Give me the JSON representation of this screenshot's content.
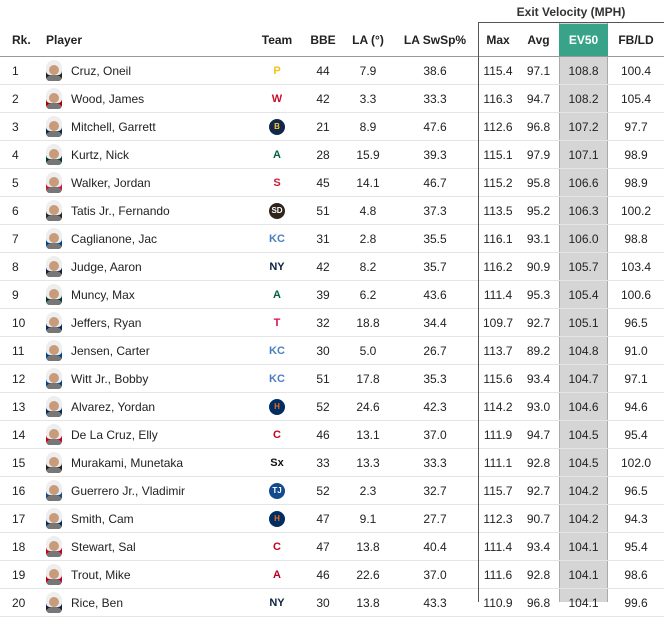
{
  "group_header": "Exit Velocity (MPH)",
  "columns": {
    "rank": "Rk.",
    "player": "Player",
    "team": "Team",
    "bbe": "BBE",
    "la": "LA (°)",
    "la_swsp": "LA SwSp%",
    "max": "Max",
    "avg": "Avg",
    "ev50": "EV50",
    "fbld": "FB/LD"
  },
  "accent_colors": {
    "ev50_header": "#39a38a",
    "ev50_column": "#d5d5d5"
  },
  "rows": [
    {
      "rank": "1",
      "player": "Cruz, Oneil",
      "team_icon": "pirates-logo-icon",
      "team_glyph": "P",
      "team_color": "#f2c21b",
      "team_bg": "transparent",
      "bbe": "44",
      "la": "7.9",
      "la_swsp": "38.6",
      "max": "115.4",
      "avg": "97.1",
      "ev50": "108.8",
      "fbld": "100.4"
    },
    {
      "rank": "2",
      "player": "Wood, James",
      "team_icon": "nationals-logo-icon",
      "team_glyph": "W",
      "team_color": "#c8102e",
      "team_bg": "transparent",
      "bbe": "42",
      "la": "3.3",
      "la_swsp": "33.3",
      "max": "116.3",
      "avg": "94.7",
      "ev50": "108.2",
      "fbld": "105.4"
    },
    {
      "rank": "3",
      "player": "Mitchell, Garrett",
      "team_icon": "brewers-logo-icon",
      "team_glyph": "B",
      "team_color": "#ffc52f",
      "team_bg": "#12284b",
      "bbe": "21",
      "la": "8.9",
      "la_swsp": "47.6",
      "max": "112.6",
      "avg": "96.8",
      "ev50": "107.2",
      "fbld": "97.7"
    },
    {
      "rank": "4",
      "player": "Kurtz, Nick",
      "team_icon": "athletics-logo-icon",
      "team_glyph": "A",
      "team_color": "#006341",
      "team_bg": "transparent",
      "bbe": "28",
      "la": "15.9",
      "la_swsp": "39.3",
      "max": "115.1",
      "avg": "97.9",
      "ev50": "107.1",
      "fbld": "98.9"
    },
    {
      "rank": "5",
      "player": "Walker, Jordan",
      "team_icon": "cardinals-logo-icon",
      "team_glyph": "S",
      "team_color": "#c41e3a",
      "team_bg": "transparent",
      "bbe": "45",
      "la": "14.1",
      "la_swsp": "46.7",
      "max": "115.2",
      "avg": "95.8",
      "ev50": "106.6",
      "fbld": "98.9"
    },
    {
      "rank": "6",
      "player": "Tatis Jr., Fernando",
      "team_icon": "padres-logo-icon",
      "team_glyph": "SD",
      "team_color": "#ffffff",
      "team_bg": "#2f241d",
      "bbe": "51",
      "la": "4.8",
      "la_swsp": "37.3",
      "max": "113.5",
      "avg": "95.2",
      "ev50": "106.3",
      "fbld": "100.2"
    },
    {
      "rank": "7",
      "player": "Caglianone, Jac",
      "team_icon": "royals-logo-icon",
      "team_glyph": "KC",
      "team_color": "#4a7fc1",
      "team_bg": "transparent",
      "bbe": "31",
      "la": "2.8",
      "la_swsp": "35.5",
      "max": "116.1",
      "avg": "93.1",
      "ev50": "106.0",
      "fbld": "98.8"
    },
    {
      "rank": "8",
      "player": "Judge, Aaron",
      "team_icon": "yankees-logo-icon",
      "team_glyph": "NY",
      "team_color": "#0c2340",
      "team_bg": "transparent",
      "bbe": "42",
      "la": "8.2",
      "la_swsp": "35.7",
      "max": "116.2",
      "avg": "90.9",
      "ev50": "105.7",
      "fbld": "103.4"
    },
    {
      "rank": "9",
      "player": "Muncy, Max",
      "team_icon": "athletics-logo-icon",
      "team_glyph": "A",
      "team_color": "#006341",
      "team_bg": "transparent",
      "bbe": "39",
      "la": "6.2",
      "la_swsp": "43.6",
      "max": "111.4",
      "avg": "95.3",
      "ev50": "105.4",
      "fbld": "100.6"
    },
    {
      "rank": "10",
      "player": "Jeffers, Ryan",
      "team_icon": "twins-logo-icon",
      "team_glyph": "T",
      "team_color": "#d31145",
      "team_bg": "transparent",
      "bbe": "32",
      "la": "18.8",
      "la_swsp": "34.4",
      "max": "109.7",
      "avg": "92.7",
      "ev50": "105.1",
      "fbld": "96.5"
    },
    {
      "rank": "11",
      "player": "Jensen, Carter",
      "team_icon": "royals-logo-icon",
      "team_glyph": "KC",
      "team_color": "#4a7fc1",
      "team_bg": "transparent",
      "bbe": "30",
      "la": "5.0",
      "la_swsp": "26.7",
      "max": "113.7",
      "avg": "89.2",
      "ev50": "104.8",
      "fbld": "91.0"
    },
    {
      "rank": "12",
      "player": "Witt Jr., Bobby",
      "team_icon": "royals-logo-icon",
      "team_glyph": "KC",
      "team_color": "#4a7fc1",
      "team_bg": "transparent",
      "bbe": "51",
      "la": "17.8",
      "la_swsp": "35.3",
      "max": "115.6",
      "avg": "93.4",
      "ev50": "104.7",
      "fbld": "97.1"
    },
    {
      "rank": "13",
      "player": "Alvarez, Yordan",
      "team_icon": "astros-logo-icon",
      "team_glyph": "H",
      "team_color": "#eb6e1f",
      "team_bg": "#002d62",
      "bbe": "52",
      "la": "24.6",
      "la_swsp": "42.3",
      "max": "114.2",
      "avg": "93.0",
      "ev50": "104.6",
      "fbld": "94.6"
    },
    {
      "rank": "14",
      "player": "De La Cruz, Elly",
      "team_icon": "reds-logo-icon",
      "team_glyph": "C",
      "team_color": "#c6011f",
      "team_bg": "transparent",
      "bbe": "46",
      "la": "13.1",
      "la_swsp": "37.0",
      "max": "111.9",
      "avg": "94.7",
      "ev50": "104.5",
      "fbld": "95.4"
    },
    {
      "rank": "15",
      "player": "Murakami, Munetaka",
      "team_icon": "white-sox-logo-icon",
      "team_glyph": "Sx",
      "team_color": "#111111",
      "team_bg": "transparent",
      "bbe": "33",
      "la": "13.3",
      "la_swsp": "33.3",
      "max": "111.1",
      "avg": "92.8",
      "ev50": "104.5",
      "fbld": "102.0"
    },
    {
      "rank": "16",
      "player": "Guerrero Jr., Vladimir",
      "team_icon": "blue-jays-logo-icon",
      "team_glyph": "TJ",
      "team_color": "#ffffff",
      "team_bg": "#134a8e",
      "bbe": "52",
      "la": "2.3",
      "la_swsp": "32.7",
      "max": "115.7",
      "avg": "92.7",
      "ev50": "104.2",
      "fbld": "96.5"
    },
    {
      "rank": "17",
      "player": "Smith, Cam",
      "team_icon": "astros-logo-icon",
      "team_glyph": "H",
      "team_color": "#eb6e1f",
      "team_bg": "#002d62",
      "bbe": "47",
      "la": "9.1",
      "la_swsp": "27.7",
      "max": "112.3",
      "avg": "90.7",
      "ev50": "104.2",
      "fbld": "94.3"
    },
    {
      "rank": "18",
      "player": "Stewart, Sal",
      "team_icon": "reds-logo-icon",
      "team_glyph": "C",
      "team_color": "#c6011f",
      "team_bg": "transparent",
      "bbe": "47",
      "la": "13.8",
      "la_swsp": "40.4",
      "max": "111.4",
      "avg": "93.4",
      "ev50": "104.1",
      "fbld": "95.4"
    },
    {
      "rank": "19",
      "player": "Trout, Mike",
      "team_icon": "angels-logo-icon",
      "team_glyph": "A",
      "team_color": "#ba0021",
      "team_bg": "transparent",
      "bbe": "46",
      "la": "22.6",
      "la_swsp": "37.0",
      "max": "111.6",
      "avg": "92.8",
      "ev50": "104.1",
      "fbld": "98.6"
    },
    {
      "rank": "20",
      "player": "Rice, Ben",
      "team_icon": "yankees-logo-icon",
      "team_glyph": "NY",
      "team_color": "#0c2340",
      "team_bg": "transparent",
      "bbe": "30",
      "la": "13.8",
      "la_swsp": "43.3",
      "max": "110.9",
      "avg": "96.8",
      "ev50": "104.1",
      "fbld": "99.6"
    }
  ]
}
